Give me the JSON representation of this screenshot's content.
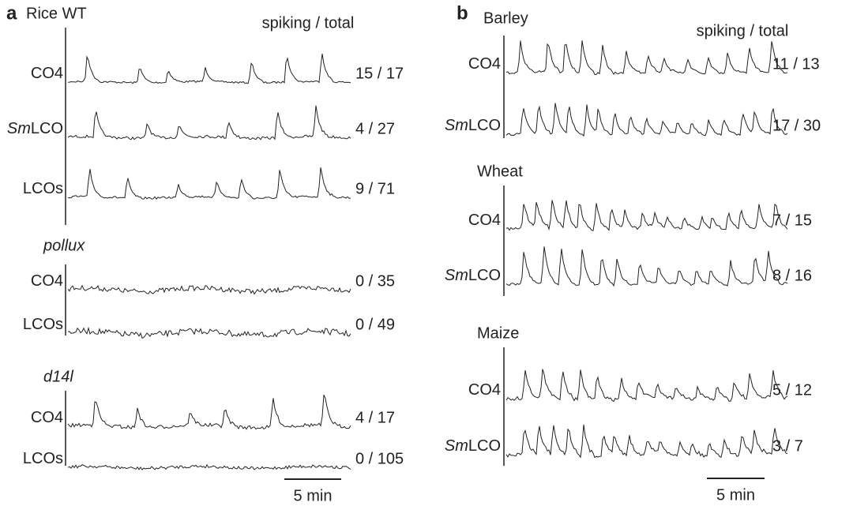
{
  "panels": [
    {
      "letter": "a",
      "header": "spiking / total",
      "scale_bar": "5 min",
      "groups": [
        {
          "title": "Rice WT",
          "rows": [
            {
              "label": "CO4",
              "count": "15 / 17"
            },
            {
              "label_italic": "Sm",
              "label": "LCO",
              "count": "4 / 27"
            },
            {
              "label": "LCOs",
              "count": "9 / 71"
            }
          ]
        },
        {
          "title": "pollux",
          "rows": [
            {
              "label": "CO4",
              "count": "0 / 35"
            },
            {
              "label": "LCOs",
              "count": "0 / 49"
            }
          ]
        },
        {
          "title": "d14l",
          "rows": [
            {
              "label": "CO4",
              "count": "4 / 17"
            },
            {
              "label": "LCOs",
              "count": "0 / 105"
            }
          ]
        }
      ]
    },
    {
      "letter": "b",
      "header": "spiking / total",
      "scale_bar": "5 min",
      "groups": [
        {
          "title": "Barley",
          "rows": [
            {
              "label": "CO4",
              "count": "11 / 13"
            },
            {
              "label_italic": "Sm",
              "label": "LCO",
              "count": "17 / 30"
            }
          ]
        },
        {
          "title": "Wheat",
          "rows": [
            {
              "label": "CO4",
              "count": "7 / 15"
            },
            {
              "label_italic": "Sm",
              "label": "LCO",
              "count": "8 / 16"
            }
          ]
        },
        {
          "title": "Maize",
          "rows": [
            {
              "label": "CO4",
              "count": "5 / 12"
            },
            {
              "label_italic": "Sm",
              "label": "LCO",
              "count": "3 / 7"
            }
          ]
        }
      ]
    }
  ]
}
